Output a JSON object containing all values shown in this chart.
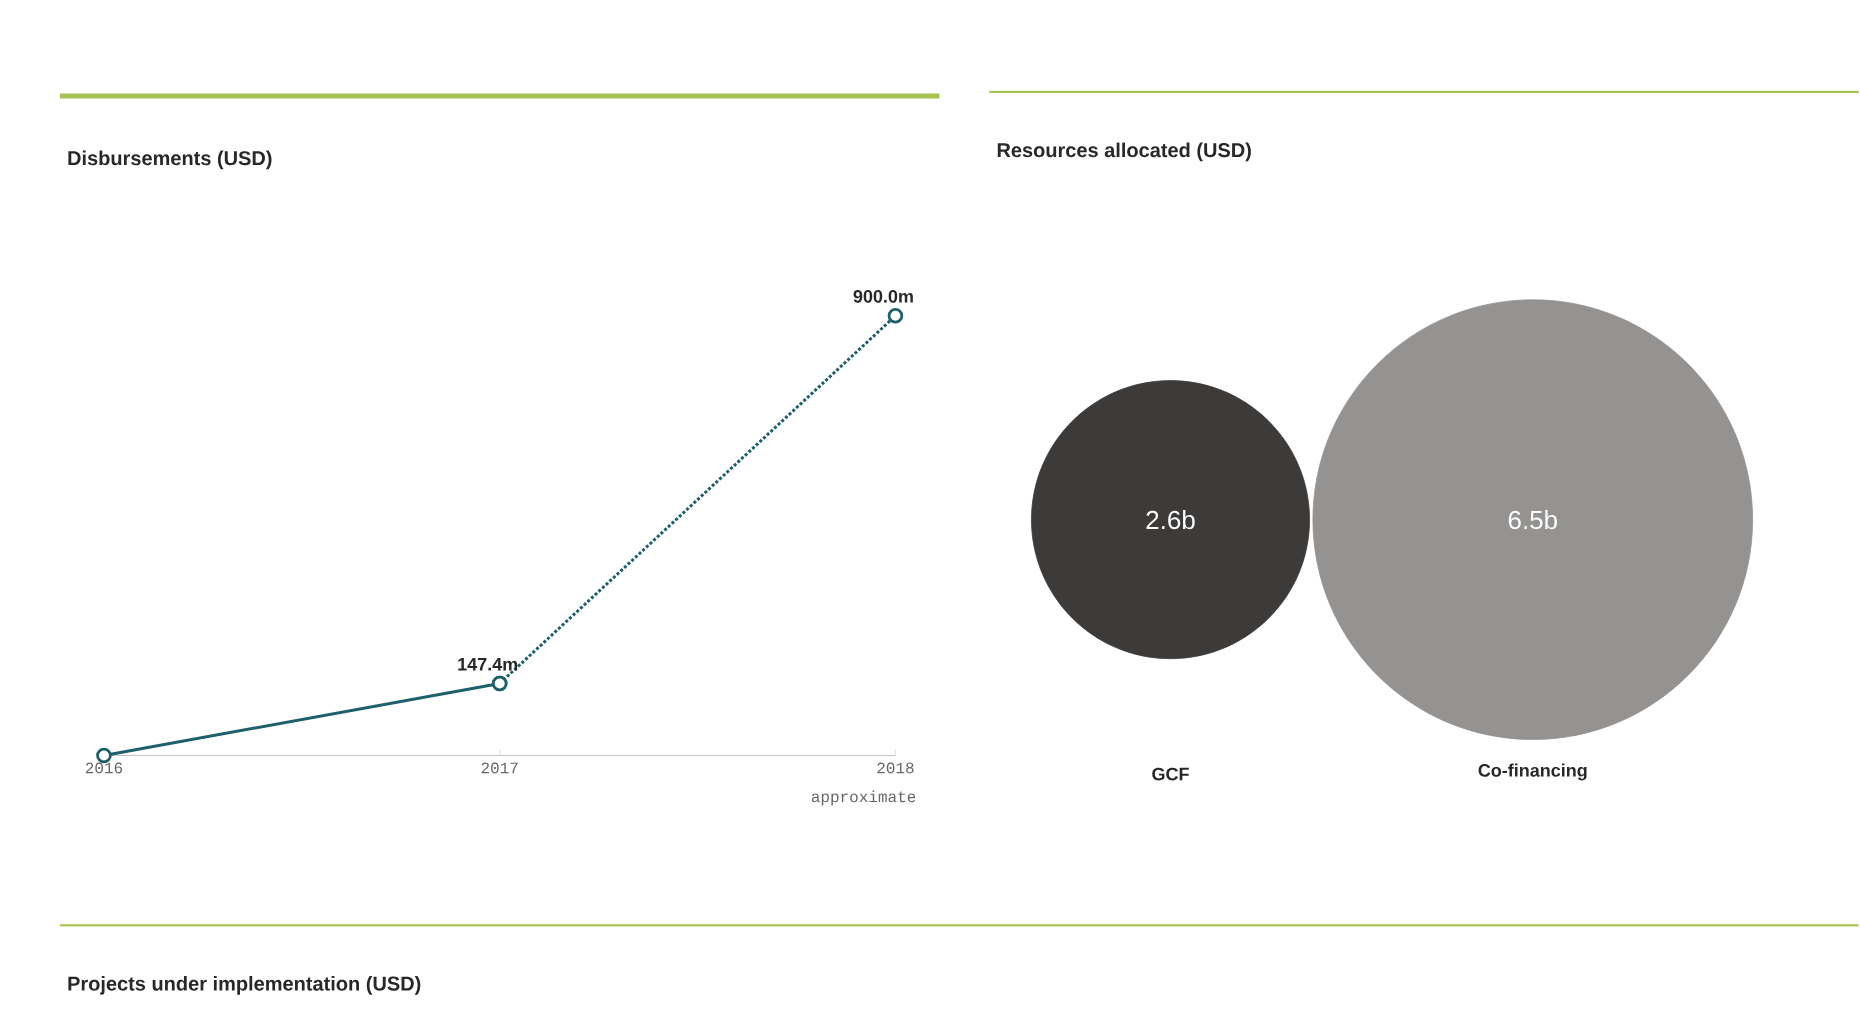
{
  "chart_data": [
    {
      "type": "line",
      "title": "Disbursements (USD)",
      "categories": [
        "2016",
        "2017",
        "2018"
      ],
      "series": [
        {
          "color": "#1d5f6b",
          "values": [
            0,
            147.4,
            null
          ],
          "line_style": "solid",
          "value_labels": [
            null,
            "147.4m",
            null
          ]
        },
        {
          "color": "#1d5f6b",
          "values": [
            null,
            147.4,
            900
          ],
          "line_style": "dotted",
          "value_labels": [
            null,
            null,
            "900.0m"
          ]
        }
      ],
      "marker": "circle",
      "tick_labels": "x",
      "annotations": [
        "approximate"
      ]
    },
    {
      "type": "other",
      "title": "Resources allocated (USD)",
      "categories": [
        "GCF",
        "Co-financing"
      ],
      "values": [
        2.6,
        6.5
      ],
      "value_labels": [
        "2.6b",
        "6.5b"
      ],
      "colors": [
        "#3d3b3a",
        "#949392"
      ]
    },
    {
      "type": "other",
      "title": "Projects under implementation (USD)"
    }
  ]
}
